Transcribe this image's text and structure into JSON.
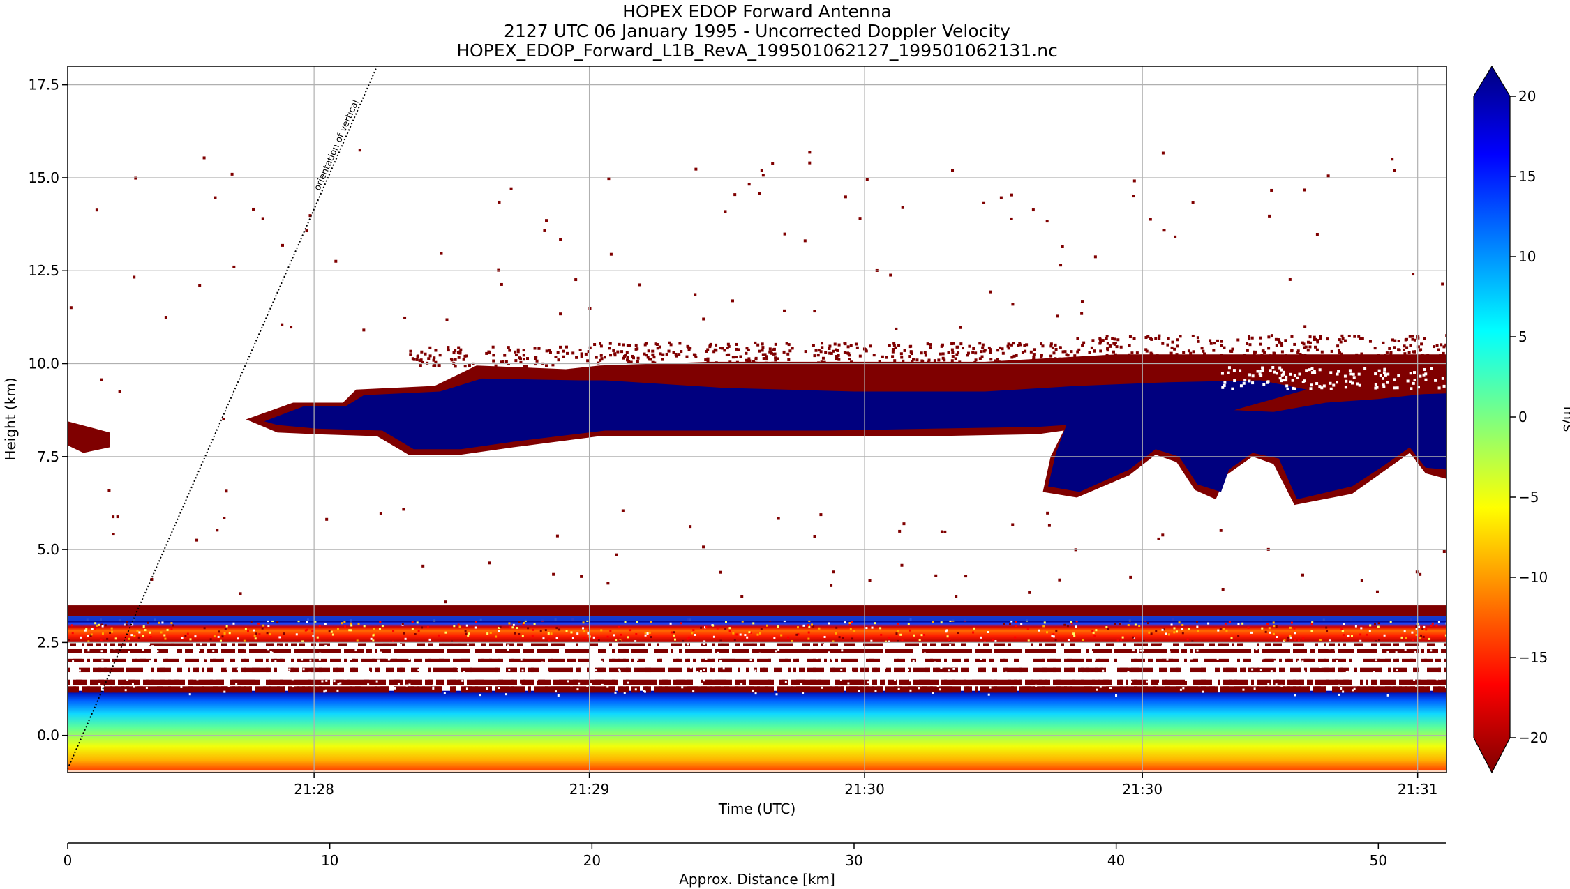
{
  "chart_data": {
    "type": "heatmap",
    "title": [
      "HOPEX EDOP Forward Antenna",
      "2127 UTC 06 January 1995 - Uncorrected Doppler Velocity",
      "HOPEX_EDOP_Forward_L1B_RevA_199501062127_199501062131.nc"
    ],
    "ylabel": "Height (km)",
    "xlabel": "Time (UTC)",
    "x2label": "Approx. Distance [km]",
    "colorbar_label": "m/s",
    "ylim": [
      -1.0,
      18.0
    ],
    "xlim_km": [
      0.0,
      52.6
    ],
    "y_ticks": [
      0.0,
      2.5,
      5.0,
      7.5,
      10.0,
      12.5,
      15.0,
      17.5
    ],
    "y_tick_labels": [
      "0.0",
      "2.5",
      "5.0",
      "7.5",
      "10.0",
      "12.5",
      "15.0",
      "17.5"
    ],
    "x_time_ticks": [
      {
        "label": "21:28",
        "km": 9.4
      },
      {
        "label": "21:29",
        "km": 19.9
      },
      {
        "label": "21:30",
        "km": 30.4
      },
      {
        "label": "21:30",
        "km": 41.0
      },
      {
        "label": "21:31",
        "km": 51.5
      }
    ],
    "x_distance_ticks": [
      {
        "label": "0",
        "km": 0
      },
      {
        "label": "10",
        "km": 10
      },
      {
        "label": "20",
        "km": 20
      },
      {
        "label": "30",
        "km": 30
      },
      {
        "label": "40",
        "km": 40
      },
      {
        "label": "50",
        "km": 50
      }
    ],
    "colorbar_ticks": [
      {
        "label": "20",
        "v": 20
      },
      {
        "label": "15",
        "v": 15
      },
      {
        "label": "10",
        "v": 10
      },
      {
        "label": "5",
        "v": 5
      },
      {
        "label": "0",
        "v": 0
      },
      {
        "label": "−5",
        "v": -5
      },
      {
        "label": "−10",
        "v": -10
      },
      {
        "label": "−15",
        "v": -15
      },
      {
        "label": "−20",
        "v": -20
      }
    ],
    "colorbar_range": [
      -20,
      20
    ],
    "colormap": "jet",
    "grid": true,
    "annotation": {
      "text": "orientation of vertical",
      "line_start": {
        "km": 0.0,
        "height": -0.9
      },
      "line_end": {
        "km": 11.8,
        "height": 18.0
      }
    },
    "features": [
      {
        "name": "cloud-layer",
        "km_range": [
          6.8,
          52.6
        ],
        "height_range": [
          6.3,
          10.3
        ],
        "velocity": 20,
        "edge_velocity": -20
      },
      {
        "name": "melting-layer",
        "km_range": [
          0.0,
          52.6
        ],
        "height_range": [
          3.2,
          3.5
        ],
        "velocity": -20
      },
      {
        "name": "surface-echo",
        "km_range": [
          0.0,
          52.6
        ],
        "height_range": [
          -1.0,
          1.2
        ],
        "velocity_range": [
          -12,
          20
        ]
      }
    ],
    "colors": {
      "low": "#7f0000",
      "high": "#00007f"
    }
  }
}
